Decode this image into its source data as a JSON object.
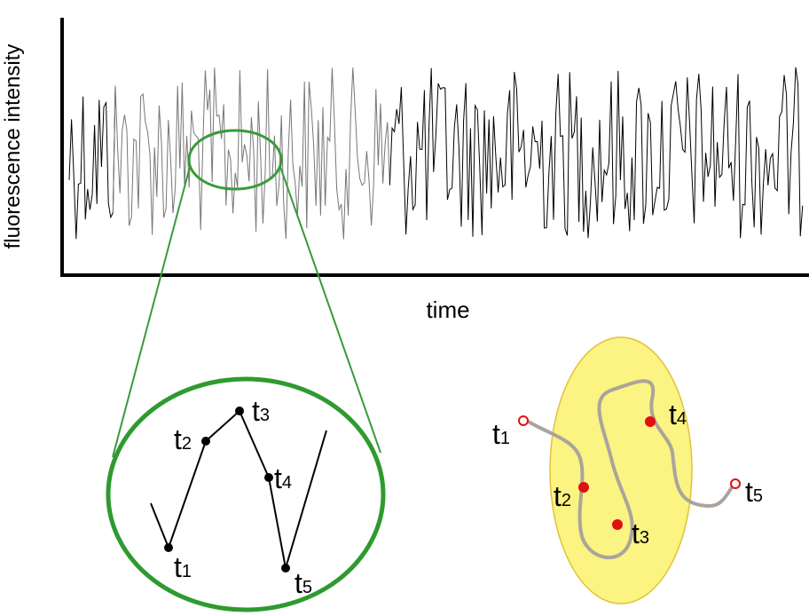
{
  "trace": {
    "y_label": "fluorescence intensity",
    "x_label": "time"
  },
  "zoom": {
    "labels": [
      {
        "t": "t",
        "sub": "1"
      },
      {
        "t": "t",
        "sub": "2"
      },
      {
        "t": "t",
        "sub": "3"
      },
      {
        "t": "t",
        "sub": "4"
      },
      {
        "t": "t",
        "sub": "5"
      }
    ]
  },
  "molecule": {
    "labels": [
      {
        "t": "t",
        "sub": "1"
      },
      {
        "t": "t",
        "sub": "2"
      },
      {
        "t": "t",
        "sub": "3"
      },
      {
        "t": "t",
        "sub": "4"
      },
      {
        "t": "t",
        "sub": "5"
      }
    ]
  }
}
